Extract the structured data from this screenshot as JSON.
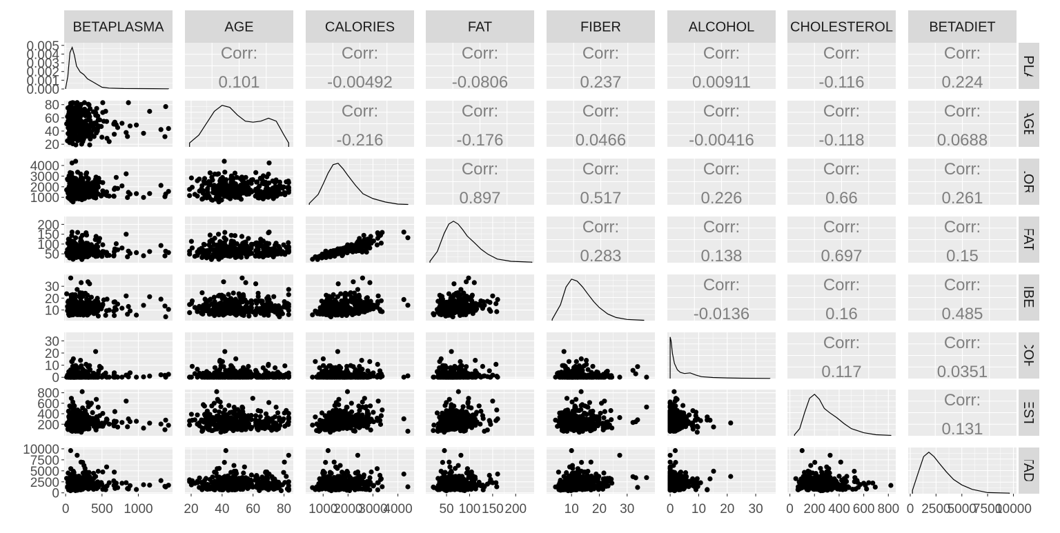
{
  "chart_data": {
    "type": "scatter",
    "variables": [
      "BETAPLASMA",
      "AGE",
      "CALORIES",
      "FAT",
      "FIBER",
      "ALCOHOL",
      "CHOLESTEROL",
      "BETADIET"
    ],
    "col_strip_labels": [
      "BETAPLASMA",
      "AGE",
      "CALORIES",
      "FAT",
      "FIBER",
      "ALCOHOL",
      "CHOLESTEROL",
      "BETADIET"
    ],
    "row_strip_labels": [
      "BETAPLASMA",
      "AGE",
      "CALORIES",
      "FAT",
      "FIBER",
      "ALCOHOL",
      "CHOLESTEROL",
      "BETADIET"
    ],
    "corr_label": "Corr:",
    "correlations": [
      {
        "row": 0,
        "col": 1,
        "value": "0.101"
      },
      {
        "row": 0,
        "col": 2,
        "value": "-0.00492"
      },
      {
        "row": 0,
        "col": 3,
        "value": "-0.0806"
      },
      {
        "row": 0,
        "col": 4,
        "value": "0.237"
      },
      {
        "row": 0,
        "col": 5,
        "value": "0.00911"
      },
      {
        "row": 0,
        "col": 6,
        "value": "-0.116"
      },
      {
        "row": 0,
        "col": 7,
        "value": "0.224"
      },
      {
        "row": 1,
        "col": 2,
        "value": "-0.216"
      },
      {
        "row": 1,
        "col": 3,
        "value": "-0.176"
      },
      {
        "row": 1,
        "col": 4,
        "value": "0.0466"
      },
      {
        "row": 1,
        "col": 5,
        "value": "-0.00416"
      },
      {
        "row": 1,
        "col": 6,
        "value": "-0.118"
      },
      {
        "row": 1,
        "col": 7,
        "value": "0.0688"
      },
      {
        "row": 2,
        "col": 3,
        "value": "0.897"
      },
      {
        "row": 2,
        "col": 4,
        "value": "0.517"
      },
      {
        "row": 2,
        "col": 5,
        "value": "0.226"
      },
      {
        "row": 2,
        "col": 6,
        "value": "0.66"
      },
      {
        "row": 2,
        "col": 7,
        "value": "0.261"
      },
      {
        "row": 3,
        "col": 4,
        "value": "0.283"
      },
      {
        "row": 3,
        "col": 5,
        "value": "0.138"
      },
      {
        "row": 3,
        "col": 6,
        "value": "0.697"
      },
      {
        "row": 3,
        "col": 7,
        "value": "0.15"
      },
      {
        "row": 4,
        "col": 5,
        "value": "-0.0136"
      },
      {
        "row": 4,
        "col": 6,
        "value": "0.16"
      },
      {
        "row": 4,
        "col": 7,
        "value": "0.485"
      },
      {
        "row": 5,
        "col": 6,
        "value": "0.117"
      },
      {
        "row": 5,
        "col": 7,
        "value": "0.0351"
      },
      {
        "row": 6,
        "col": 7,
        "value": "0.131"
      }
    ],
    "x_axes": [
      {
        "lim": [
          -20,
          1470
        ],
        "ticks": [
          0,
          500,
          1000
        ],
        "labels": [
          "0",
          "500",
          "1000"
        ]
      },
      {
        "lim": [
          16,
          86
        ],
        "ticks": [
          20,
          40,
          60,
          80
        ],
        "labels": [
          "20",
          "40",
          "60",
          "80"
        ]
      },
      {
        "lim": [
          300,
          4650
        ],
        "ticks": [
          1000,
          2000,
          3000,
          4000
        ],
        "labels": [
          "1000",
          "2000",
          "3000",
          "4000"
        ]
      },
      {
        "lim": [
          5,
          240
        ],
        "ticks": [
          50,
          100,
          150,
          200
        ],
        "labels": [
          "50",
          "100",
          "150",
          "200"
        ]
      },
      {
        "lim": [
          1,
          40
        ],
        "ticks": [
          10,
          20,
          30
        ],
        "labels": [
          "10",
          "20",
          "30"
        ]
      },
      {
        "lim": [
          -1,
          37
        ],
        "ticks": [
          0,
          10,
          20,
          30
        ],
        "labels": [
          "0",
          "10",
          "20",
          "30"
        ]
      },
      {
        "lim": [
          -20,
          860
        ],
        "ticks": [
          0,
          200,
          400,
          600,
          800
        ],
        "labels": [
          "0",
          "200",
          "400",
          "600",
          "800"
        ]
      },
      {
        "lim": [
          -200,
          10300
        ],
        "ticks": [
          0,
          2500,
          5000,
          7500,
          10000
        ],
        "labels": [
          "0",
          "2500",
          "5000",
          "7500",
          "10000"
        ]
      }
    ],
    "y_axes": [
      {
        "lim": [
          0,
          0.0053
        ],
        "ticks": [
          0,
          0.001,
          0.002,
          0.003,
          0.004,
          0.005
        ],
        "labels": [
          "0.000",
          "0.001",
          "0.002",
          "0.003",
          "0.004",
          "0.005"
        ]
      },
      {
        "lim": [
          16,
          86
        ],
        "ticks": [
          20,
          40,
          60,
          80
        ],
        "labels": [
          "20",
          "40",
          "60",
          "80"
        ]
      },
      {
        "lim": [
          300,
          4650
        ],
        "ticks": [
          1000,
          2000,
          3000,
          4000
        ],
        "labels": [
          "1000",
          "2000",
          "3000",
          "4000"
        ]
      },
      {
        "lim": [
          5,
          240
        ],
        "ticks": [
          50,
          100,
          150,
          200
        ],
        "labels": [
          "50",
          "100",
          "150",
          "200"
        ]
      },
      {
        "lim": [
          1,
          40
        ],
        "ticks": [
          10,
          20,
          30
        ],
        "labels": [
          "10",
          "20",
          "30"
        ]
      },
      {
        "lim": [
          -1,
          37
        ],
        "ticks": [
          0,
          10,
          20,
          30
        ],
        "labels": [
          "0",
          "10",
          "20",
          "30"
        ]
      },
      {
        "lim": [
          -20,
          860
        ],
        "ticks": [
          200,
          400,
          600,
          800
        ],
        "labels": [
          "200",
          "400",
          "600",
          "800"
        ]
      },
      {
        "lim": [
          -200,
          10300
        ],
        "ticks": [
          0,
          2500,
          5000,
          7500,
          10000
        ],
        "labels": [
          "0",
          "2500",
          "5000",
          "7500",
          "10000"
        ]
      }
    ],
    "densities": [
      {
        "var": "BETAPLASMA",
        "x": [
          0,
          30,
          60,
          90,
          120,
          150,
          200,
          250,
          300,
          400,
          500,
          600,
          800,
          1000,
          1200,
          1415
        ],
        "y": [
          0.0001,
          0.0015,
          0.0043,
          0.0049,
          0.004,
          0.0027,
          0.002,
          0.0017,
          0.0012,
          0.0007,
          0.0002,
          0.0001,
          5e-05,
          4e-05,
          3e-05,
          2e-05
        ]
      },
      {
        "var": "AGE",
        "x": [
          19,
          25,
          30,
          35,
          40,
          45,
          50,
          55,
          60,
          65,
          70,
          75,
          80,
          83
        ],
        "y": [
          0.002,
          0.006,
          0.012,
          0.018,
          0.021,
          0.02,
          0.016,
          0.013,
          0.0125,
          0.013,
          0.0145,
          0.013,
          0.006,
          0.002
        ]
      },
      {
        "var": "CALORIES",
        "x": [
          445,
          800,
          1000,
          1200,
          1400,
          1600,
          1800,
          2000,
          2300,
          2600,
          3000,
          3500,
          4000,
          4400
        ],
        "y": [
          2e-05,
          0.00015,
          0.0003,
          0.00046,
          0.00058,
          0.0006,
          0.00052,
          0.00042,
          0.00028,
          0.00016,
          9e-05,
          4e-05,
          1e-05,
          5e-06
        ]
      },
      {
        "var": "FAT",
        "x": [
          14,
          30,
          45,
          55,
          65,
          75,
          85,
          95,
          110,
          125,
          140,
          160,
          190,
          235
        ],
        "y": [
          0.0005,
          0.004,
          0.0105,
          0.0138,
          0.0148,
          0.0138,
          0.0118,
          0.0095,
          0.0072,
          0.0048,
          0.003,
          0.0013,
          0.0005,
          0.0002
        ]
      },
      {
        "var": "FIBER",
        "x": [
          3,
          6,
          8,
          10,
          12,
          14,
          16,
          18,
          20,
          23,
          26,
          30,
          36
        ],
        "y": [
          0.003,
          0.04,
          0.085,
          0.105,
          0.1,
          0.085,
          0.066,
          0.048,
          0.033,
          0.017,
          0.008,
          0.003,
          0.0008
        ]
      },
      {
        "var": "ALCOHOL",
        "x": [
          0,
          0.3,
          0.8,
          1.5,
          2.5,
          3.5,
          5,
          7,
          9,
          11,
          15,
          20,
          25,
          35
        ],
        "y": [
          0.33,
          0.3,
          0.2,
          0.12,
          0.07,
          0.05,
          0.04,
          0.045,
          0.028,
          0.015,
          0.008,
          0.005,
          0.003,
          0.001
        ]
      },
      {
        "var": "CHOLESTEROL",
        "x": [
          38,
          80,
          120,
          160,
          200,
          240,
          280,
          320,
          380,
          440,
          500,
          600,
          700,
          820
        ],
        "y": [
          0.0001,
          0.0007,
          0.0023,
          0.0037,
          0.0041,
          0.0036,
          0.0027,
          0.0023,
          0.0018,
          0.0012,
          0.0007,
          0.0003,
          0.0001,
          4e-05
        ]
      },
      {
        "var": "BETADIET",
        "x": [
          214,
          800,
          1300,
          1800,
          2300,
          2800,
          3500,
          4200,
          5000,
          6000,
          7500,
          9600
        ],
        "y": [
          3e-05,
          0.0002,
          0.00034,
          0.00038,
          0.00034,
          0.00028,
          0.0002,
          0.00013,
          8e-05,
          4e-05,
          1e-05,
          5e-06
        ]
      }
    ],
    "scatter_points_generated": "approximate point clouds reproduced from the figure",
    "grid": true,
    "legend": "none"
  }
}
